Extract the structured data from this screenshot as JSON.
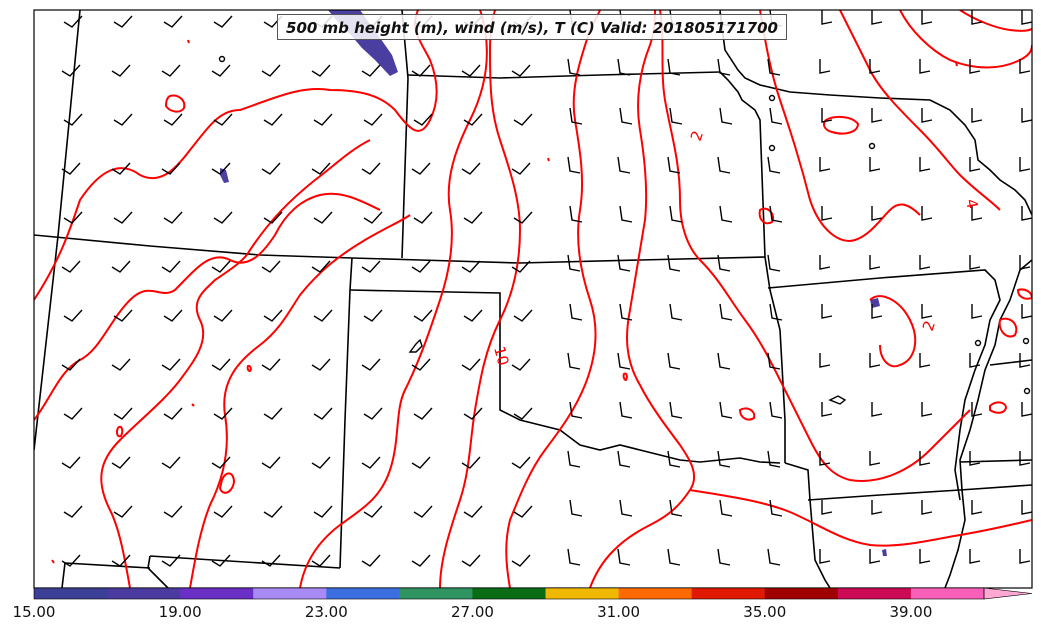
{
  "title": "500 mb height (m), wind (m/s), T (C) Valid: 201805171700",
  "contour_labels": [
    {
      "text": "2"
    },
    {
      "text": "4"
    },
    {
      "text": "10"
    },
    {
      "text": "2"
    }
  ],
  "colorbar": {
    "range": [
      15,
      43
    ],
    "tick_labels": [
      "15.00",
      "19.00",
      "23.00",
      "27.00",
      "31.00",
      "35.00",
      "39.00"
    ],
    "colors": [
      "#3c3f96",
      "#4b3a9f",
      "#6a2fc4",
      "#a98bf5",
      "#3b6fe0",
      "#2f9462",
      "#0a6d16",
      "#f0b800",
      "#ff6a00",
      "#e01a00",
      "#a00000",
      "#cc0a55",
      "#f75fb8",
      "#ffa8d4"
    ],
    "extend": "max"
  },
  "colors": {
    "temperature_contour": "#ff0000",
    "borders": "#000000",
    "wind_barbs": "#000000",
    "wind_shading": "#4a3fa0"
  }
}
